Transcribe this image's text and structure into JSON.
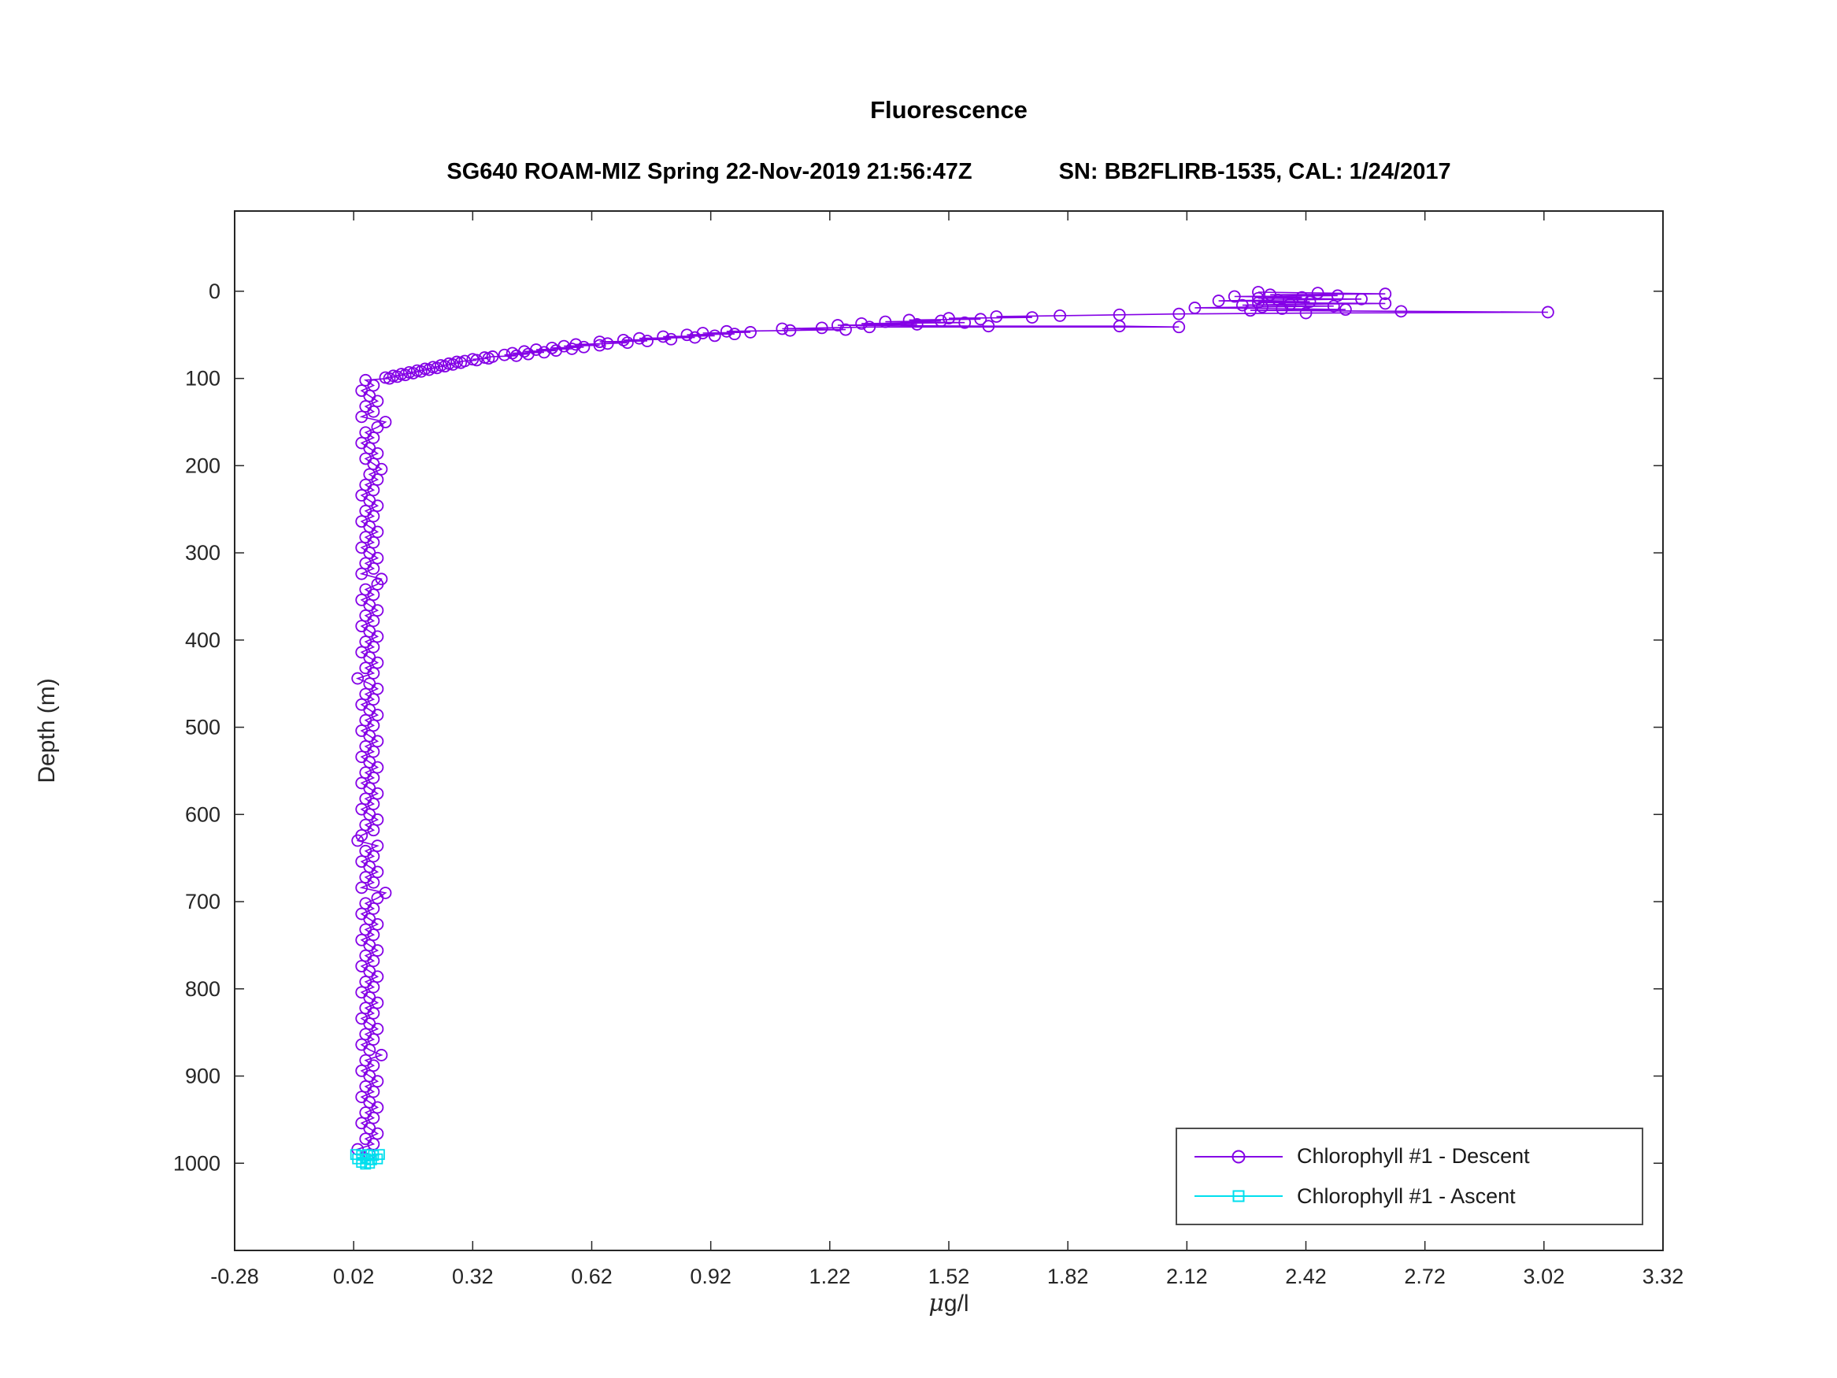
{
  "figure": {
    "title": "Fluorescence",
    "subtitle_left": "SG640 ROAM-MIZ Spring 22-Nov-2019 21:56:47Z",
    "subtitle_right": "SN: BB2FLIRB-1535, CAL: 1/24/2017",
    "background_color": "#ffffff",
    "axes_color": "#262626"
  },
  "chart_data": {
    "type": "scatter",
    "title": "Fluorescence",
    "subtitle": "SG640 ROAM-MIZ Spring 22-Nov-2019 21:56:47Z        SN: BB2FLIRB-1535, CAL: 1/24/2017",
    "xlabel": "μg/l",
    "xlabel_mu": "μ",
    "xlabel_rest": "g/l",
    "ylabel": "Depth (m)",
    "xlim": [
      -0.28,
      3.32
    ],
    "ylim": [
      -92,
      1100
    ],
    "y_axis_reversed": true,
    "grid": false,
    "x_tick_values": [
      -0.28,
      0.02,
      0.32,
      0.62,
      0.92,
      1.22,
      1.52,
      1.82,
      2.12,
      2.42,
      2.72,
      3.02,
      3.32
    ],
    "x_tick_labels": [
      "-0.28",
      "0.02",
      "0.32",
      "0.62",
      "0.92",
      "1.22",
      "1.52",
      "1.82",
      "2.12",
      "2.42",
      "2.72",
      "3.02",
      "3.32"
    ],
    "y_tick_values": [
      0,
      100,
      200,
      300,
      400,
      500,
      600,
      700,
      800,
      900,
      1000
    ],
    "y_tick_labels": [
      "0",
      "100",
      "200",
      "300",
      "400",
      "500",
      "600",
      "700",
      "800",
      "900",
      "1000"
    ],
    "legend": {
      "position": "southeast",
      "entries": [
        {
          "label": "Chlorophyll #1 - Descent",
          "color": "#8400e6",
          "marker": "circle"
        },
        {
          "label": "Chlorophyll #1 - Ascent",
          "color": "#00dfee",
          "marker": "square"
        }
      ]
    },
    "series": [
      {
        "name": "Chlorophyll #1 - Descent",
        "color": "#8400e6",
        "marker": "circle",
        "points": [
          [
            2.3,
            1
          ],
          [
            2.45,
            2
          ],
          [
            2.62,
            3
          ],
          [
            2.33,
            4
          ],
          [
            2.5,
            5
          ],
          [
            2.24,
            6
          ],
          [
            2.41,
            7
          ],
          [
            2.3,
            8
          ],
          [
            2.56,
            9
          ],
          [
            2.35,
            10
          ],
          [
            2.2,
            11
          ],
          [
            2.43,
            12
          ],
          [
            2.3,
            13
          ],
          [
            2.62,
            14
          ],
          [
            2.38,
            15
          ],
          [
            2.26,
            16
          ],
          [
            2.49,
            17
          ],
          [
            2.31,
            18
          ],
          [
            2.14,
            19
          ],
          [
            2.36,
            20
          ],
          [
            2.52,
            21
          ],
          [
            2.28,
            22
          ],
          [
            2.66,
            23
          ],
          [
            3.03,
            24
          ],
          [
            2.42,
            25
          ],
          [
            2.1,
            26
          ],
          [
            1.95,
            27
          ],
          [
            1.8,
            28
          ],
          [
            1.64,
            29
          ],
          [
            1.73,
            30
          ],
          [
            1.52,
            31
          ],
          [
            1.6,
            32
          ],
          [
            1.42,
            33
          ],
          [
            1.5,
            34
          ],
          [
            1.36,
            35
          ],
          [
            1.56,
            36
          ],
          [
            1.3,
            37
          ],
          [
            1.44,
            38
          ],
          [
            1.24,
            39
          ],
          [
            1.62,
            40
          ],
          [
            1.95,
            40
          ],
          [
            2.1,
            41
          ],
          [
            1.32,
            41
          ],
          [
            1.2,
            42
          ],
          [
            1.1,
            43
          ],
          [
            1.26,
            44
          ],
          [
            1.12,
            45
          ],
          [
            0.96,
            46
          ],
          [
            1.02,
            47
          ],
          [
            0.9,
            48
          ],
          [
            0.98,
            49
          ],
          [
            0.86,
            50
          ],
          [
            0.93,
            51
          ],
          [
            0.8,
            52
          ],
          [
            0.88,
            53
          ],
          [
            0.74,
            54
          ],
          [
            0.82,
            55
          ],
          [
            0.7,
            56
          ],
          [
            0.76,
            57
          ],
          [
            0.64,
            58
          ],
          [
            0.71,
            59
          ],
          [
            0.66,
            60
          ],
          [
            0.58,
            61
          ],
          [
            0.64,
            62
          ],
          [
            0.55,
            63
          ],
          [
            0.6,
            64
          ],
          [
            0.52,
            65
          ],
          [
            0.57,
            66
          ],
          [
            0.48,
            67
          ],
          [
            0.53,
            68
          ],
          [
            0.45,
            69
          ],
          [
            0.5,
            70
          ],
          [
            0.42,
            71
          ],
          [
            0.46,
            72
          ],
          [
            0.4,
            73
          ],
          [
            0.43,
            74
          ],
          [
            0.37,
            75
          ],
          [
            0.35,
            76
          ],
          [
            0.36,
            77
          ],
          [
            0.32,
            78
          ],
          [
            0.33,
            79
          ],
          [
            0.3,
            80
          ],
          [
            0.28,
            81
          ],
          [
            0.29,
            82
          ],
          [
            0.26,
            83
          ],
          [
            0.27,
            84
          ],
          [
            0.24,
            85
          ],
          [
            0.25,
            86
          ],
          [
            0.22,
            87
          ],
          [
            0.23,
            88
          ],
          [
            0.2,
            89
          ],
          [
            0.21,
            90
          ],
          [
            0.18,
            91
          ],
          [
            0.19,
            92
          ],
          [
            0.16,
            93
          ],
          [
            0.17,
            94
          ],
          [
            0.14,
            95
          ],
          [
            0.15,
            96
          ],
          [
            0.12,
            97
          ],
          [
            0.13,
            98
          ],
          [
            0.1,
            99
          ],
          [
            0.11,
            100
          ],
          [
            0.05,
            102
          ],
          [
            0.07,
            108
          ],
          [
            0.04,
            114
          ],
          [
            0.06,
            120
          ],
          [
            0.08,
            126
          ],
          [
            0.05,
            132
          ],
          [
            0.07,
            138
          ],
          [
            0.04,
            144
          ],
          [
            0.1,
            150
          ],
          [
            0.08,
            156
          ],
          [
            0.05,
            162
          ],
          [
            0.07,
            168
          ],
          [
            0.04,
            174
          ],
          [
            0.06,
            180
          ],
          [
            0.08,
            186
          ],
          [
            0.05,
            192
          ],
          [
            0.07,
            198
          ],
          [
            0.09,
            204
          ],
          [
            0.06,
            210
          ],
          [
            0.08,
            216
          ],
          [
            0.05,
            222
          ],
          [
            0.07,
            228
          ],
          [
            0.04,
            234
          ],
          [
            0.06,
            240
          ],
          [
            0.08,
            246
          ],
          [
            0.05,
            252
          ],
          [
            0.07,
            258
          ],
          [
            0.04,
            264
          ],
          [
            0.06,
            270
          ],
          [
            0.08,
            276
          ],
          [
            0.05,
            282
          ],
          [
            0.07,
            288
          ],
          [
            0.04,
            294
          ],
          [
            0.06,
            300
          ],
          [
            0.08,
            306
          ],
          [
            0.05,
            312
          ],
          [
            0.07,
            318
          ],
          [
            0.04,
            324
          ],
          [
            0.09,
            330
          ],
          [
            0.08,
            336
          ],
          [
            0.05,
            342
          ],
          [
            0.07,
            348
          ],
          [
            0.04,
            354
          ],
          [
            0.06,
            360
          ],
          [
            0.08,
            366
          ],
          [
            0.05,
            372
          ],
          [
            0.07,
            378
          ],
          [
            0.04,
            384
          ],
          [
            0.06,
            390
          ],
          [
            0.08,
            396
          ],
          [
            0.05,
            402
          ],
          [
            0.07,
            408
          ],
          [
            0.04,
            414
          ],
          [
            0.06,
            420
          ],
          [
            0.08,
            426
          ],
          [
            0.05,
            432
          ],
          [
            0.07,
            438
          ],
          [
            0.03,
            444
          ],
          [
            0.06,
            450
          ],
          [
            0.08,
            456
          ],
          [
            0.05,
            462
          ],
          [
            0.07,
            468
          ],
          [
            0.04,
            474
          ],
          [
            0.06,
            480
          ],
          [
            0.08,
            486
          ],
          [
            0.05,
            492
          ],
          [
            0.07,
            498
          ],
          [
            0.04,
            504
          ],
          [
            0.06,
            510
          ],
          [
            0.08,
            516
          ],
          [
            0.05,
            522
          ],
          [
            0.07,
            528
          ],
          [
            0.04,
            534
          ],
          [
            0.06,
            540
          ],
          [
            0.08,
            546
          ],
          [
            0.05,
            552
          ],
          [
            0.07,
            558
          ],
          [
            0.04,
            564
          ],
          [
            0.06,
            570
          ],
          [
            0.08,
            576
          ],
          [
            0.05,
            582
          ],
          [
            0.07,
            588
          ],
          [
            0.04,
            594
          ],
          [
            0.06,
            600
          ],
          [
            0.08,
            606
          ],
          [
            0.05,
            612
          ],
          [
            0.07,
            618
          ],
          [
            0.04,
            624
          ],
          [
            0.03,
            630
          ],
          [
            0.08,
            636
          ],
          [
            0.05,
            642
          ],
          [
            0.07,
            648
          ],
          [
            0.04,
            654
          ],
          [
            0.06,
            660
          ],
          [
            0.08,
            666
          ],
          [
            0.05,
            672
          ],
          [
            0.07,
            678
          ],
          [
            0.04,
            684
          ],
          [
            0.1,
            690
          ],
          [
            0.08,
            696
          ],
          [
            0.05,
            702
          ],
          [
            0.07,
            708
          ],
          [
            0.04,
            714
          ],
          [
            0.06,
            720
          ],
          [
            0.08,
            726
          ],
          [
            0.05,
            732
          ],
          [
            0.07,
            738
          ],
          [
            0.04,
            744
          ],
          [
            0.06,
            750
          ],
          [
            0.08,
            756
          ],
          [
            0.05,
            762
          ],
          [
            0.07,
            768
          ],
          [
            0.04,
            774
          ],
          [
            0.06,
            780
          ],
          [
            0.08,
            786
          ],
          [
            0.05,
            792
          ],
          [
            0.07,
            798
          ],
          [
            0.04,
            804
          ],
          [
            0.06,
            810
          ],
          [
            0.08,
            816
          ],
          [
            0.05,
            822
          ],
          [
            0.07,
            828
          ],
          [
            0.04,
            834
          ],
          [
            0.06,
            840
          ],
          [
            0.08,
            846
          ],
          [
            0.05,
            852
          ],
          [
            0.07,
            858
          ],
          [
            0.04,
            864
          ],
          [
            0.06,
            870
          ],
          [
            0.09,
            876
          ],
          [
            0.05,
            882
          ],
          [
            0.07,
            888
          ],
          [
            0.04,
            894
          ],
          [
            0.06,
            900
          ],
          [
            0.08,
            906
          ],
          [
            0.05,
            912
          ],
          [
            0.07,
            918
          ],
          [
            0.04,
            924
          ],
          [
            0.06,
            930
          ],
          [
            0.08,
            936
          ],
          [
            0.05,
            942
          ],
          [
            0.07,
            948
          ],
          [
            0.04,
            954
          ],
          [
            0.06,
            960
          ],
          [
            0.08,
            966
          ],
          [
            0.05,
            972
          ],
          [
            0.07,
            978
          ],
          [
            0.03,
            984
          ],
          [
            0.06,
            990
          ]
        ]
      },
      {
        "name": "Chlorophyll #1 - Ascent",
        "color": "#00dfee",
        "marker": "square",
        "points": [
          [
            0.025,
            990
          ],
          [
            0.04,
            991
          ],
          [
            0.055,
            990
          ],
          [
            0.07,
            991
          ],
          [
            0.085,
            990
          ],
          [
            0.03,
            995
          ],
          [
            0.05,
            995
          ],
          [
            0.065,
            996
          ],
          [
            0.08,
            995
          ],
          [
            0.04,
            999
          ],
          [
            0.06,
            1000
          ],
          [
            0.05,
            1001
          ]
        ]
      }
    ]
  }
}
